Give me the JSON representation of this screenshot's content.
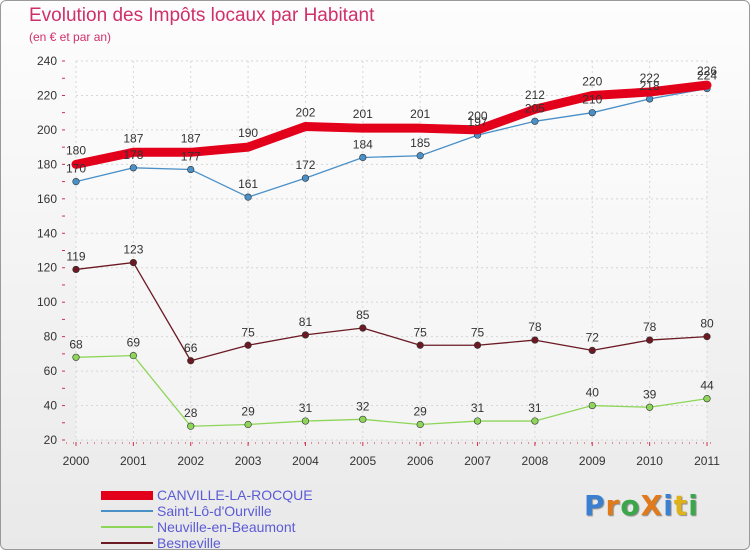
{
  "title": "Evolution des Impôts locaux par Habitant",
  "subtitle": "(en € et par an)",
  "logo": {
    "text": "ProXiti",
    "colors": [
      "#3a7fd0",
      "#e07a1a",
      "#3aa84a",
      "#e07a1a",
      "#3a7fd0",
      "#e0b21a",
      "#3aa84a"
    ]
  },
  "chart_data": {
    "type": "line",
    "x": [
      "2000",
      "2001",
      "2002",
      "2003",
      "2004",
      "2005",
      "2006",
      "2007",
      "2008",
      "2009",
      "2010",
      "2011"
    ],
    "ylim": [
      20,
      240
    ],
    "yticks": [
      "20",
      "40",
      "60",
      "80",
      "100",
      "120",
      "140",
      "160",
      "180",
      "200",
      "220",
      "240"
    ],
    "grid": true,
    "series": [
      {
        "name": "CANVILLE-LA-ROCQUE",
        "color": "#e3001b",
        "values": [
          180,
          187,
          187,
          190,
          202,
          201,
          201,
          200,
          212,
          220,
          222,
          226
        ]
      },
      {
        "name": "Saint-Lô-d'Ourville",
        "color": "#4a90c8",
        "values": [
          170,
          178,
          177,
          161,
          172,
          184,
          185,
          197,
          205,
          210,
          218,
          224
        ]
      },
      {
        "name": "Neuville-en-Beaumont",
        "color": "#8ed65a",
        "values": [
          68,
          69,
          28,
          29,
          31,
          32,
          29,
          31,
          31,
          40,
          39,
          44
        ]
      },
      {
        "name": "Besneville",
        "color": "#6b1a24",
        "values": [
          119,
          123,
          66,
          75,
          81,
          85,
          75,
          75,
          78,
          72,
          78,
          80
        ]
      }
    ]
  }
}
